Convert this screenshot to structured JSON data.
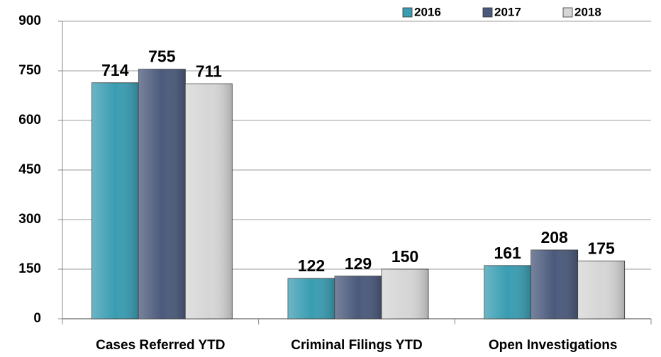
{
  "chart_data": {
    "type": "bar",
    "categories": [
      "Cases Referred YTD",
      "Criminal Filings YTD",
      "Open Investigations"
    ],
    "series": [
      {
        "name": "2016",
        "color": "#3a9db2",
        "values": [
          714,
          122,
          161
        ]
      },
      {
        "name": "2017",
        "color": "#4b5a7c",
        "values": [
          755,
          129,
          208
        ]
      },
      {
        "name": "2018",
        "color": "#d6d6d6",
        "values": [
          711,
          150,
          175
        ]
      }
    ],
    "ylim": [
      0,
      900
    ],
    "yticks": [
      0,
      150,
      300,
      450,
      600,
      750,
      900
    ],
    "grid": true,
    "legend": "top-right"
  }
}
